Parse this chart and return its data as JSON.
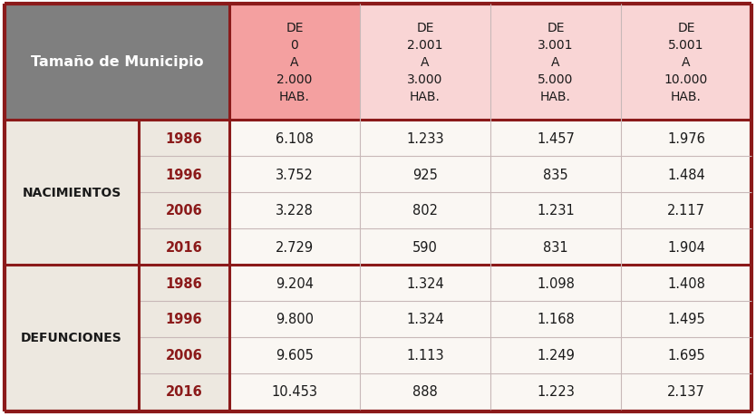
{
  "col_label": "Tamaño de Municipio",
  "row_groups": [
    "NACIMIENTOS",
    "DEFUNCIONES"
  ],
  "years": [
    "1986",
    "1996",
    "2006",
    "2016"
  ],
  "nacimientos": [
    [
      "6.108",
      "1.233",
      "1.457",
      "1.976"
    ],
    [
      "3.752",
      "925",
      "835",
      "1.484"
    ],
    [
      "3.228",
      "802",
      "1.231",
      "2.117"
    ],
    [
      "2.729",
      "590",
      "831",
      "1.904"
    ]
  ],
  "defunciones": [
    [
      "9.204",
      "1.324",
      "1.098",
      "1.408"
    ],
    [
      "9.800",
      "1.324",
      "1.168",
      "1.495"
    ],
    [
      "9.605",
      "1.113",
      "1.249",
      "1.695"
    ],
    [
      "10.453",
      "888",
      "1.223",
      "2.137"
    ]
  ],
  "col_headers": [
    [
      "DE",
      "0",
      "A",
      "2.000",
      "HAB."
    ],
    [
      "DE",
      "2.001",
      "A",
      "3.000",
      "HAB."
    ],
    [
      "DE",
      "3.001",
      "A",
      "5.000",
      "HAB."
    ],
    [
      "DE",
      "5.001",
      "A",
      "10.000",
      "HAB."
    ]
  ],
  "color_header_gray": "#7F7F7F",
  "color_header_col1": "#F4A0A0",
  "color_header_col234": "#F9D5D5",
  "color_row_label": "#EDE8E0",
  "color_border_dark": "#8B1A1A",
  "color_border_thin": "#C8B8B8",
  "color_cell_bg": "#FAF7F3",
  "color_year_text": "#8B1A1A",
  "color_data_text": "#1A1A1A",
  "color_group_text": "#1A1A1A",
  "color_white": "#FFFFFF"
}
